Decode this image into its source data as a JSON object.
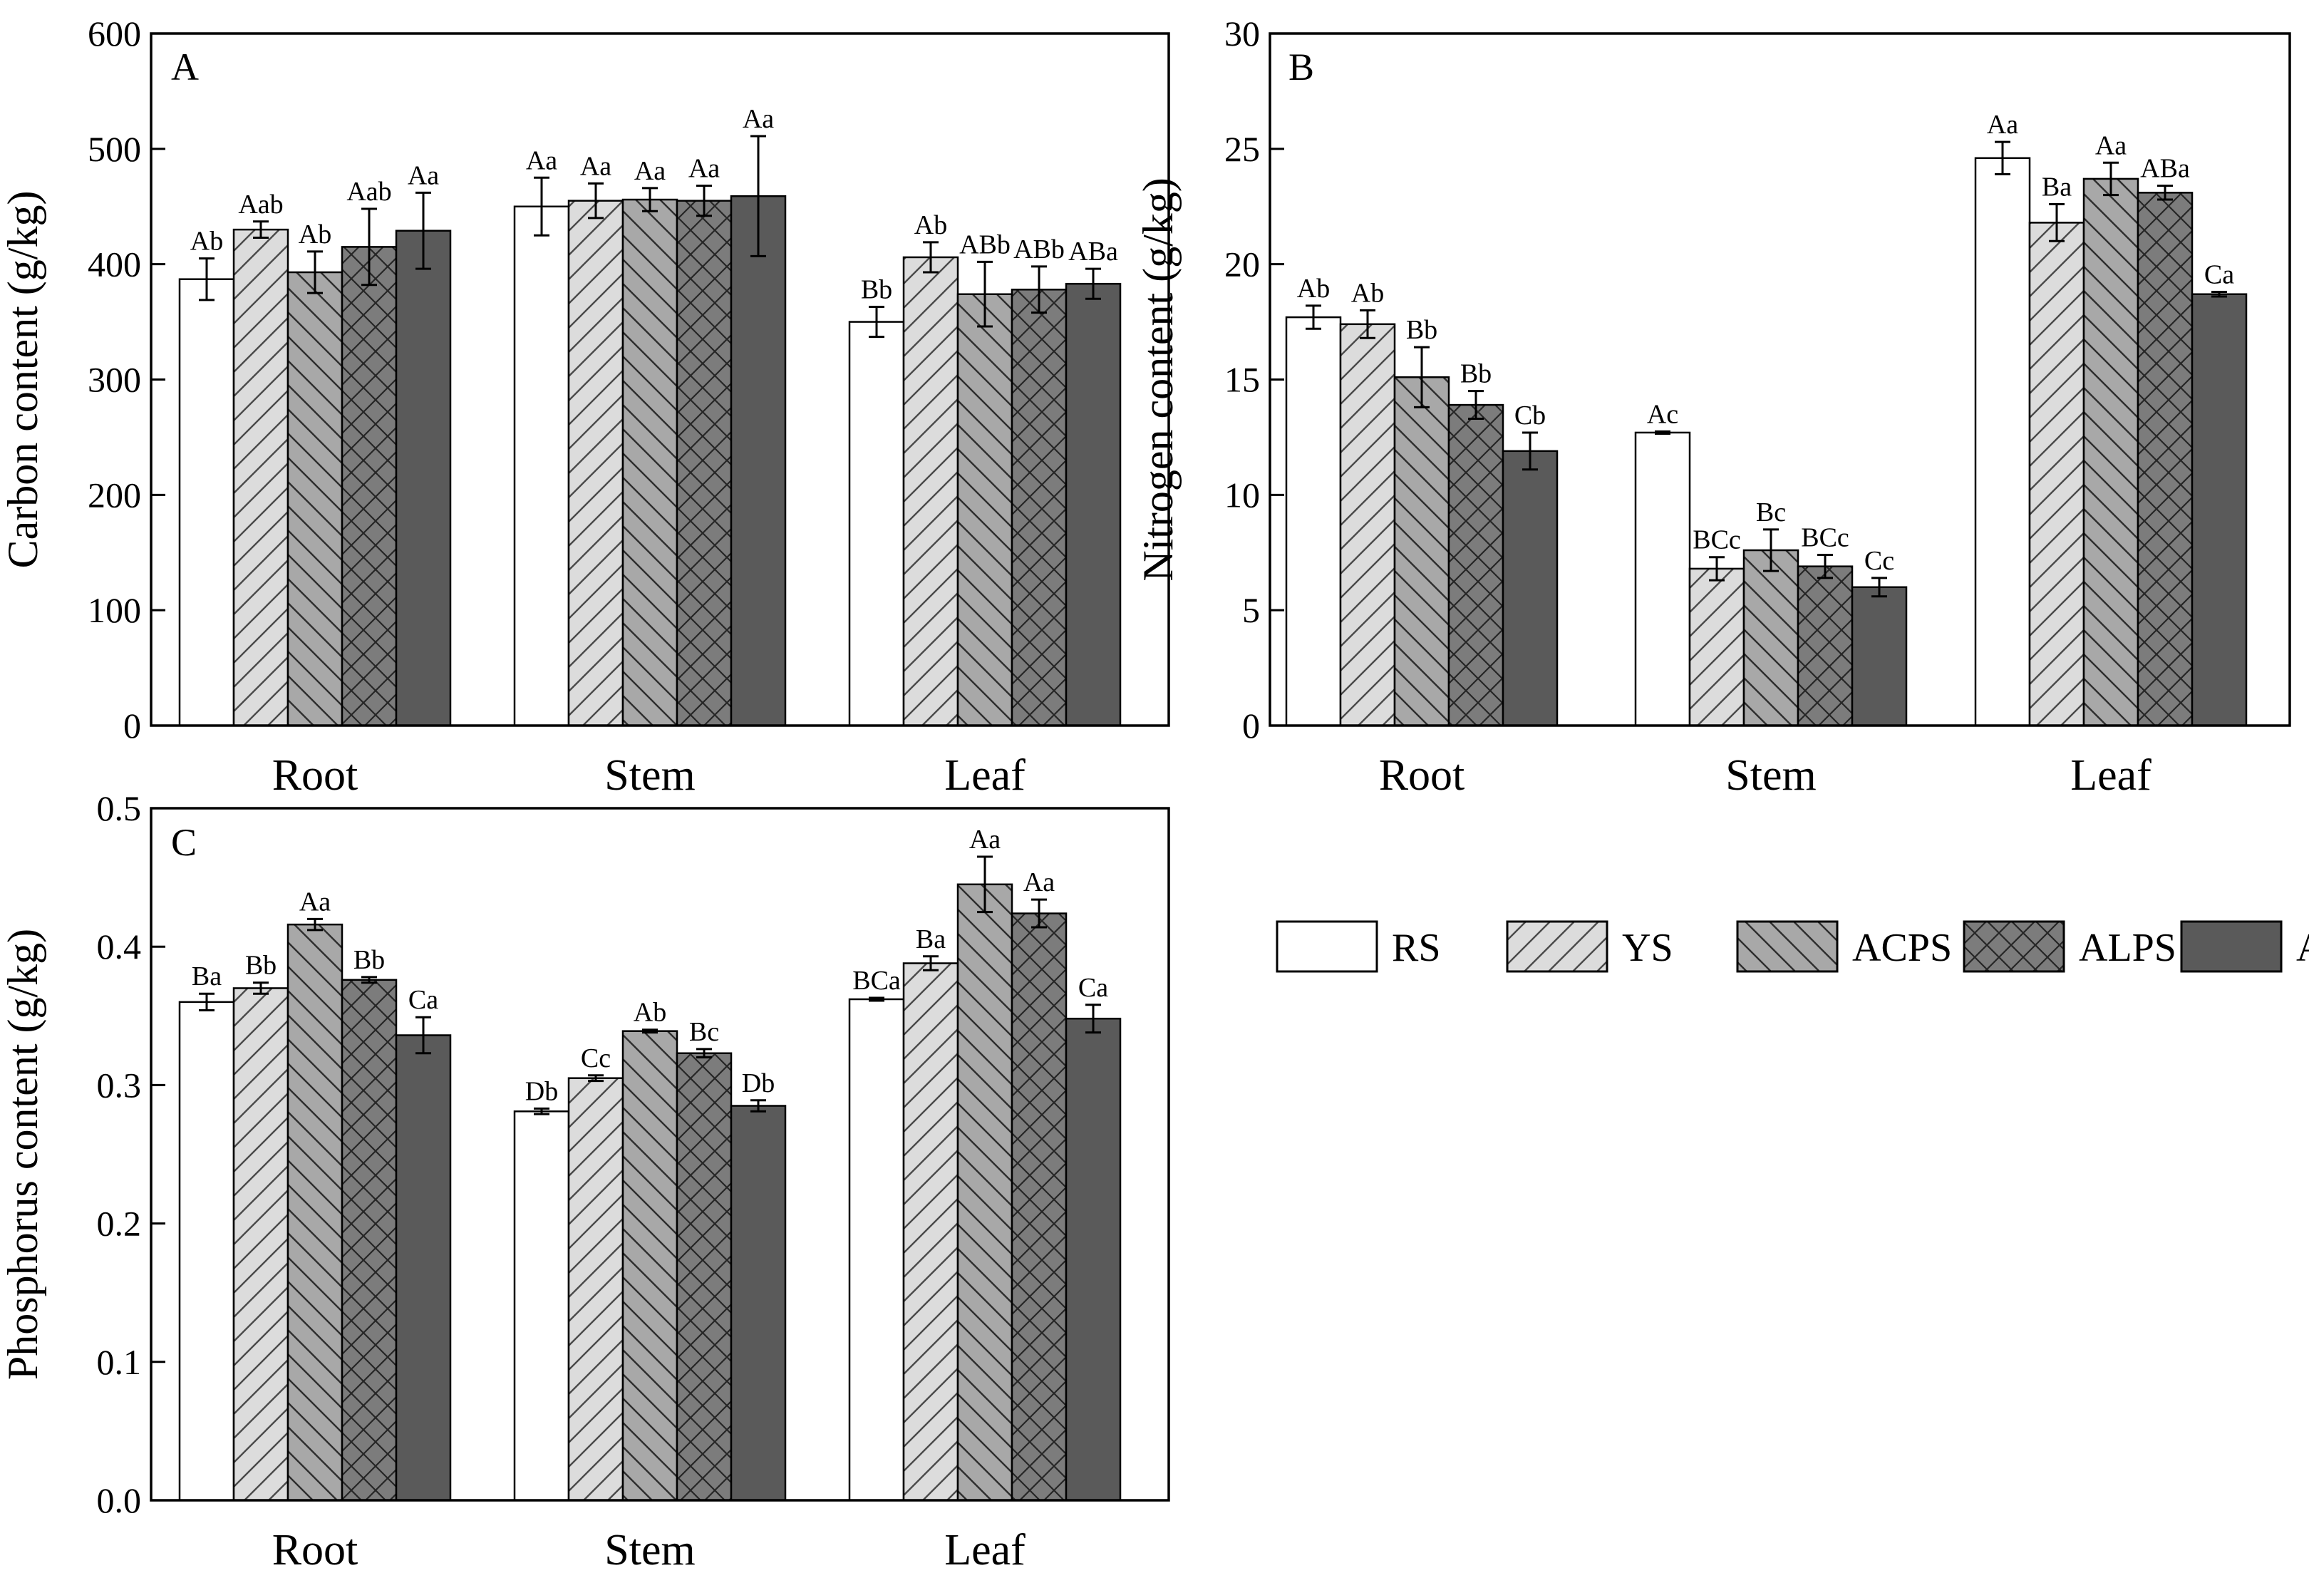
{
  "legend": {
    "items": [
      {
        "name": "RS",
        "fill": "#ffffff",
        "pattern": "none"
      },
      {
        "name": "YS",
        "fill": "#dcdcdc",
        "pattern": "diag-right"
      },
      {
        "name": "ACPS",
        "fill": "#a8a8a8",
        "pattern": "diag-left"
      },
      {
        "name": "ALPS",
        "fill": "#7c7c7c",
        "pattern": "cross"
      },
      {
        "name": "AS",
        "fill": "#5a5a5a",
        "pattern": "none"
      }
    ]
  },
  "chart_data": [
    {
      "type": "bar",
      "panel": "A",
      "ylabel": "Carbon content (g/kg)",
      "ylim": [
        0,
        600
      ],
      "yticks": [
        0,
        100,
        200,
        300,
        400,
        500,
        600
      ],
      "categories": [
        "Root",
        "Stem",
        "Leaf"
      ],
      "series": [
        {
          "name": "RS",
          "values": [
            387,
            450,
            350
          ],
          "errors": [
            18,
            25,
            13
          ],
          "labels": [
            "Ab",
            "Aa",
            "Bb"
          ]
        },
        {
          "name": "YS",
          "values": [
            430,
            455,
            406
          ],
          "errors": [
            7,
            15,
            13
          ],
          "labels": [
            "Aab",
            "Aa",
            "Ab"
          ]
        },
        {
          "name": "ACPS",
          "values": [
            393,
            456,
            374
          ],
          "errors": [
            18,
            10,
            28
          ],
          "labels": [
            "Ab",
            "Aa",
            "ABb"
          ]
        },
        {
          "name": "ALPS",
          "values": [
            415,
            455,
            378
          ],
          "errors": [
            33,
            13,
            20
          ],
          "labels": [
            "Aab",
            "Aa",
            "ABb"
          ]
        },
        {
          "name": "AS",
          "values": [
            429,
            459,
            383
          ],
          "errors": [
            33,
            52,
            13
          ],
          "labels": [
            "Aa",
            "Aa",
            "ABa"
          ]
        }
      ]
    },
    {
      "type": "bar",
      "panel": "B",
      "ylabel": "Nitrogen content (g/kg)",
      "ylim": [
        0,
        30
      ],
      "yticks": [
        0,
        5,
        10,
        15,
        20,
        25,
        30
      ],
      "categories": [
        "Root",
        "Stem",
        "Leaf"
      ],
      "series": [
        {
          "name": "RS",
          "values": [
            17.7,
            12.7,
            24.6
          ],
          "errors": [
            0.5,
            0.05,
            0.7
          ],
          "labels": [
            "Ab",
            "Ac",
            "Aa"
          ]
        },
        {
          "name": "YS",
          "values": [
            17.4,
            6.8,
            21.8
          ],
          "errors": [
            0.6,
            0.5,
            0.8
          ],
          "labels": [
            "Ab",
            "BCc",
            "Ba"
          ]
        },
        {
          "name": "ACPS",
          "values": [
            15.1,
            7.6,
            23.7
          ],
          "errors": [
            1.3,
            0.9,
            0.7
          ],
          "labels": [
            "Bb",
            "Bc",
            "Aa"
          ]
        },
        {
          "name": "ALPS",
          "values": [
            13.9,
            6.9,
            23.1
          ],
          "errors": [
            0.6,
            0.5,
            0.3
          ],
          "labels": [
            "Bb",
            "BCc",
            "ABa"
          ]
        },
        {
          "name": "AS",
          "values": [
            11.9,
            6.0,
            18.7
          ],
          "errors": [
            0.8,
            0.4,
            0.1
          ],
          "labels": [
            "Cb",
            "Cc",
            "Ca"
          ]
        }
      ]
    },
    {
      "type": "bar",
      "panel": "C",
      "ylabel": "Phosphorus content (g/kg)",
      "ylim": [
        0,
        0.5
      ],
      "yticks": [
        "0.0",
        "0.1",
        "0.2",
        "0.3",
        "0.4",
        "0.5"
      ],
      "categories": [
        "Root",
        "Stem",
        "Leaf"
      ],
      "series": [
        {
          "name": "RS",
          "values": [
            0.36,
            0.281,
            0.362
          ],
          "errors": [
            0.006,
            0.002,
            0.001
          ],
          "labels": [
            "Ba",
            "Db",
            "BCa"
          ]
        },
        {
          "name": "YS",
          "values": [
            0.37,
            0.305,
            0.388
          ],
          "errors": [
            0.004,
            0.002,
            0.005
          ],
          "labels": [
            "Bb",
            "Cc",
            "Ba"
          ]
        },
        {
          "name": "ACPS",
          "values": [
            0.416,
            0.339,
            0.445
          ],
          "errors": [
            0.004,
            0.001,
            0.02
          ],
          "labels": [
            "Aa",
            "Ab",
            "Aa"
          ]
        },
        {
          "name": "ALPS",
          "values": [
            0.376,
            0.323,
            0.424
          ],
          "errors": [
            0.002,
            0.003,
            0.01
          ],
          "labels": [
            "Bb",
            "Bc",
            "Aa"
          ]
        },
        {
          "name": "AS",
          "values": [
            0.336,
            0.285,
            0.348
          ],
          "errors": [
            0.013,
            0.004,
            0.01
          ],
          "labels": [
            "Ca",
            "Db",
            "Ca"
          ]
        }
      ]
    }
  ]
}
